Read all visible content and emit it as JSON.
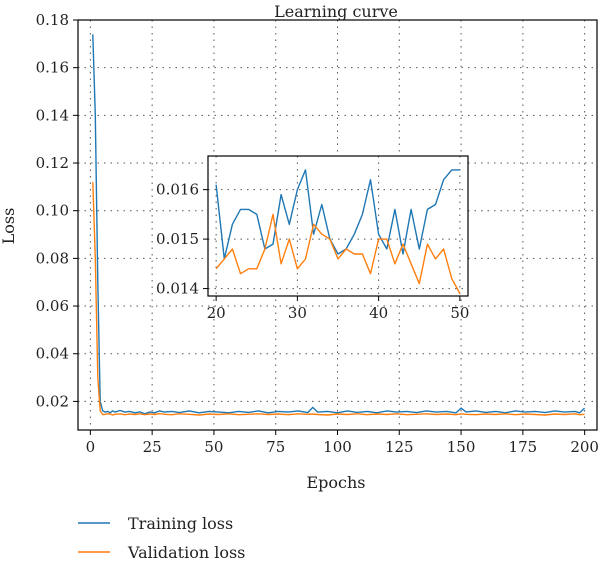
{
  "chart_data": {
    "type": "line",
    "title": "Learning curve",
    "xlabel": "Epochs",
    "ylabel": "Loss",
    "xlim": [
      -5,
      205
    ],
    "ylim": [
      0.008,
      0.18
    ],
    "xticks": [
      0,
      25,
      50,
      75,
      100,
      125,
      150,
      175,
      200
    ],
    "yticks": [
      0.02,
      0.04,
      0.06,
      0.08,
      0.1,
      0.12,
      0.14,
      0.16,
      0.18
    ],
    "ytick_labels": [
      "0.02",
      "0.04",
      "0.06",
      "0.08",
      "0.10",
      "0.12",
      "0.14",
      "0.16",
      "0.18"
    ],
    "grid": true,
    "legend_position": "bottom-left, below plot",
    "series": [
      {
        "name": "Training loss",
        "color": "#1f77b4",
        "x": [
          1,
          2,
          3,
          4,
          5,
          6,
          7,
          8,
          9,
          10,
          12,
          14,
          16,
          18,
          20,
          22,
          24,
          26,
          28,
          30,
          33,
          36,
          40,
          44,
          48,
          52,
          56,
          60,
          64,
          68,
          72,
          76,
          80,
          84,
          88,
          90,
          92,
          96,
          100,
          104,
          108,
          112,
          116,
          120,
          124,
          128,
          132,
          136,
          140,
          144,
          148,
          150,
          152,
          156,
          160,
          164,
          168,
          172,
          176,
          180,
          184,
          188,
          192,
          196,
          198,
          200
        ],
        "y": [
          0.174,
          0.14,
          0.07,
          0.02,
          0.016,
          0.0155,
          0.0158,
          0.0152,
          0.016,
          0.0155,
          0.0162,
          0.0155,
          0.0158,
          0.0152,
          0.0156,
          0.0148,
          0.0155,
          0.0152,
          0.016,
          0.0155,
          0.0158,
          0.0153,
          0.016,
          0.0152,
          0.0158,
          0.0155,
          0.0152,
          0.0158,
          0.0154,
          0.016,
          0.0152,
          0.0158,
          0.0155,
          0.016,
          0.0153,
          0.0175,
          0.0155,
          0.0158,
          0.0152,
          0.016,
          0.0154,
          0.0158,
          0.0152,
          0.016,
          0.0155,
          0.0158,
          0.0153,
          0.016,
          0.0155,
          0.0158,
          0.0152,
          0.0172,
          0.0156,
          0.016,
          0.0154,
          0.0158,
          0.0152,
          0.016,
          0.0155,
          0.0158,
          0.0153,
          0.016,
          0.0155,
          0.0158,
          0.0152,
          0.0172
        ]
      },
      {
        "name": "Validation loss",
        "color": "#ff7f0e",
        "x": [
          1,
          2,
          3,
          4,
          5,
          6,
          7,
          8,
          9,
          10,
          12,
          14,
          16,
          18,
          20,
          22,
          24,
          26,
          28,
          30,
          33,
          36,
          40,
          44,
          48,
          52,
          56,
          60,
          64,
          68,
          72,
          76,
          80,
          84,
          88,
          90,
          92,
          96,
          100,
          104,
          108,
          112,
          116,
          120,
          124,
          128,
          132,
          136,
          140,
          144,
          148,
          150,
          152,
          156,
          160,
          164,
          168,
          172,
          176,
          180,
          184,
          188,
          192,
          196,
          198,
          200
        ],
        "y": [
          0.112,
          0.08,
          0.03,
          0.016,
          0.0145,
          0.0146,
          0.0148,
          0.0147,
          0.0143,
          0.0146,
          0.0148,
          0.0144,
          0.0147,
          0.0145,
          0.0148,
          0.0144,
          0.0147,
          0.0145,
          0.0149,
          0.0146,
          0.0144,
          0.0148,
          0.0146,
          0.0143,
          0.0147,
          0.0145,
          0.0148,
          0.0144,
          0.0146,
          0.0148,
          0.0145,
          0.0147,
          0.0144,
          0.0148,
          0.0146,
          0.0147,
          0.0145,
          0.0143,
          0.0147,
          0.0145,
          0.0148,
          0.0144,
          0.0147,
          0.0145,
          0.0148,
          0.0144,
          0.0146,
          0.0148,
          0.0145,
          0.0147,
          0.0144,
          0.0148,
          0.0146,
          0.0144,
          0.0147,
          0.0145,
          0.0148,
          0.0144,
          0.0147,
          0.0145,
          0.0143,
          0.0147,
          0.0145,
          0.0148,
          0.0144,
          0.0146
        ]
      }
    ],
    "inset": {
      "xlim": [
        19,
        51
      ],
      "ylim": [
        0.01385,
        0.01668
      ],
      "xticks": [
        20,
        30,
        40,
        50
      ],
      "yticks": [
        0.014,
        0.015,
        0.016
      ],
      "ytick_labels": [
        "0.014",
        "0.015",
        "0.016"
      ],
      "grid": true,
      "series": [
        {
          "name": "Training loss",
          "x": [
            20,
            21,
            22,
            23,
            24,
            25,
            26,
            27,
            28,
            29,
            30,
            31,
            32,
            33,
            34,
            35,
            36,
            37,
            38,
            39,
            40,
            41,
            42,
            43,
            44,
            45,
            46,
            47,
            48,
            49,
            50
          ],
          "y": [
            0.0161,
            0.0146,
            0.0153,
            0.0156,
            0.0156,
            0.0155,
            0.0148,
            0.0149,
            0.0159,
            0.0153,
            0.016,
            0.0164,
            0.0151,
            0.0157,
            0.015,
            0.0147,
            0.0148,
            0.0151,
            0.0155,
            0.0162,
            0.0151,
            0.0148,
            0.0156,
            0.0147,
            0.0156,
            0.0148,
            0.0156,
            0.0157,
            0.0162,
            0.0164,
            0.0164
          ]
        },
        {
          "name": "Validation loss",
          "x": [
            20,
            21,
            22,
            23,
            24,
            25,
            26,
            27,
            28,
            29,
            30,
            31,
            32,
            33,
            34,
            35,
            36,
            37,
            38,
            39,
            40,
            41,
            42,
            43,
            44,
            45,
            46,
            47,
            48,
            49,
            50
          ],
          "y": [
            0.0144,
            0.0146,
            0.0148,
            0.0143,
            0.0144,
            0.0144,
            0.0148,
            0.0155,
            0.0145,
            0.015,
            0.0144,
            0.0146,
            0.0153,
            0.0151,
            0.015,
            0.0146,
            0.0148,
            0.0147,
            0.0147,
            0.0143,
            0.015,
            0.015,
            0.0145,
            0.0149,
            0.0145,
            0.0141,
            0.0149,
            0.0146,
            0.0148,
            0.0142,
            0.0139
          ]
        }
      ]
    }
  }
}
